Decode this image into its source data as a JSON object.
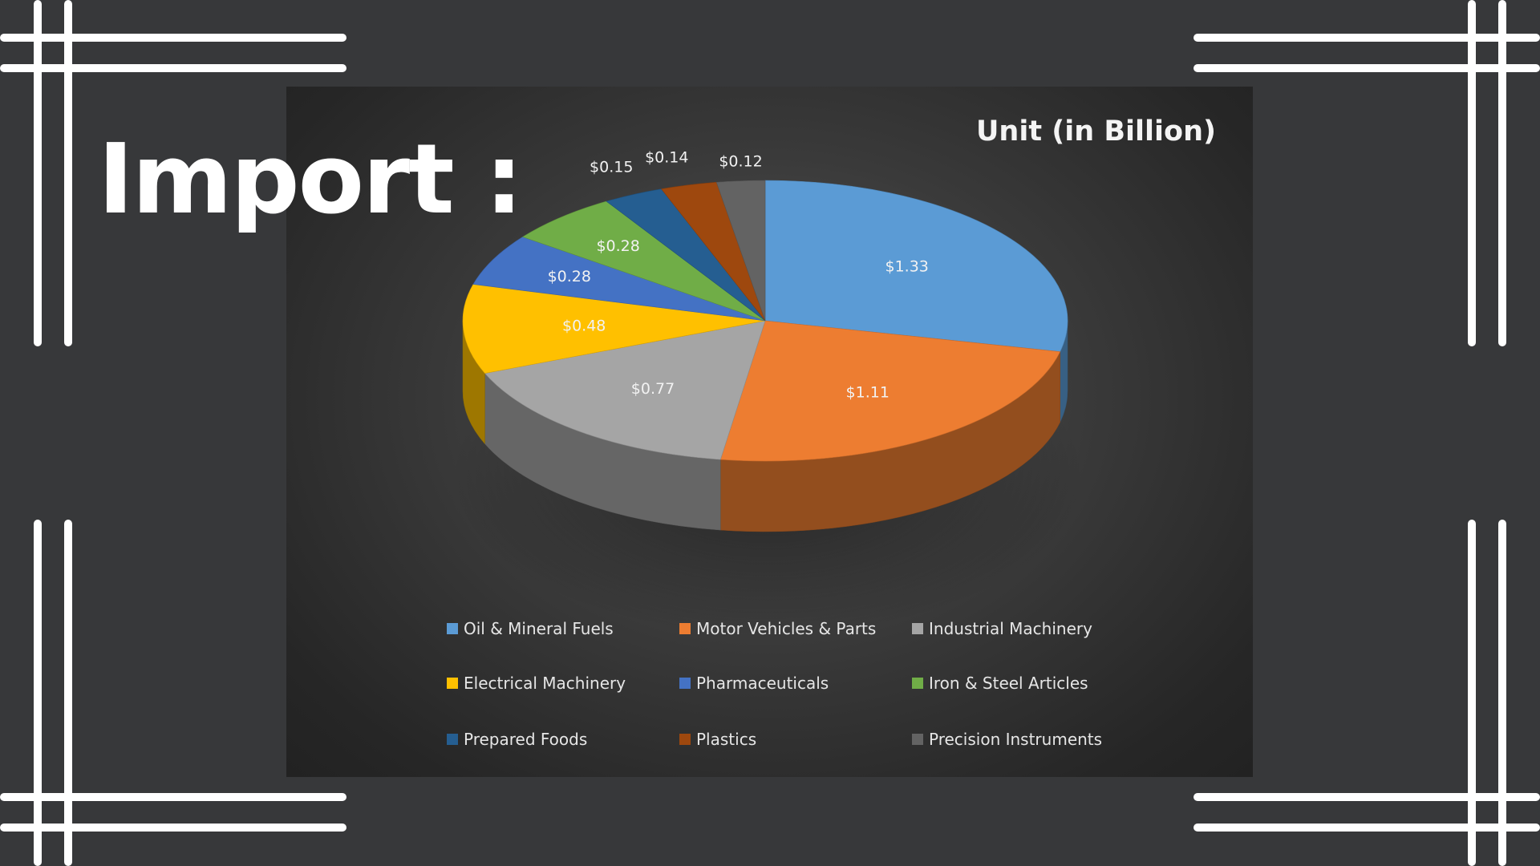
{
  "heading": "Import :",
  "chart_data": {
    "type": "pie",
    "title": "Unit (in Billion)",
    "categories": [
      "Oil & Mineral Fuels",
      "Motor Vehicles & Parts",
      "Industrial Machinery",
      "Electrical Machinery",
      "Pharmaceuticals",
      "Iron & Steel Articles",
      "Prepared Foods",
      "Plastics",
      "Precision Instruments"
    ],
    "values": [
      1.33,
      1.11,
      0.77,
      0.48,
      0.28,
      0.28,
      0.15,
      0.14,
      0.12
    ],
    "data_labels": [
      "$1.33",
      "$1.11",
      "$0.77",
      "$0.48",
      "$0.28",
      "$0.28",
      "$0.15",
      "$0.14",
      "$0.12"
    ],
    "colors": [
      "#5b9bd5",
      "#ed7d31",
      "#a5a5a5",
      "#ffc000",
      "#4472c4",
      "#70ad47",
      "#255e91",
      "#9e480e",
      "#636363"
    ],
    "legend_position": "bottom",
    "style": "3d"
  }
}
